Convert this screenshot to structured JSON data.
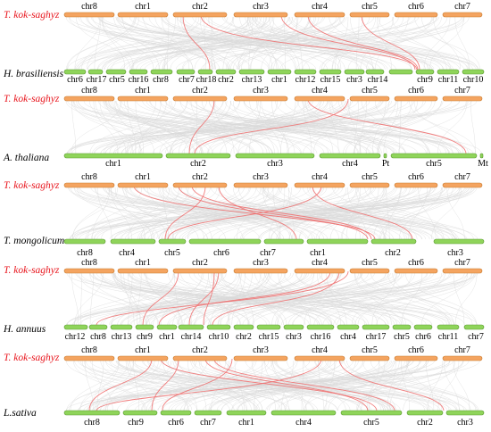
{
  "colors": {
    "top_chr": "#f4a460",
    "top_chr_stroke": "#c77a2e",
    "bottom_chr": "#8fd45a",
    "bottom_chr_stroke": "#5a9a30",
    "background_link": "#d9d9d9",
    "highlight_link": "#f07070",
    "ref_label": "#e8141c",
    "species_label": "#000000"
  },
  "panels": [
    {
      "ref_label": "T. kok-saghyz",
      "species_label": "H. brasiliensis",
      "top_chromosomes": [
        "chr8",
        "chr1",
        "chr2",
        "chr3",
        "chr4",
        "chr5",
        "chr6",
        "chr7"
      ],
      "bottom_chromosomes": [
        "chr6",
        "chr17",
        "chr5",
        "chr16",
        "chr8",
        "chr7",
        "chr18",
        "chr2",
        "chr13",
        "chr1",
        "chr12",
        "chr15",
        "chr3",
        "chr14",
        "chr9",
        "chr11",
        "chr10"
      ]
    },
    {
      "ref_label": "T. kok-saghyz",
      "species_label": "A. thaliana",
      "top_chromosomes": [
        "chr8",
        "chr1",
        "chr2",
        "chr3",
        "chr4",
        "chr5",
        "chr6",
        "chr7"
      ],
      "bottom_chromosomes": [
        "chr1",
        "chr2",
        "chr3",
        "chr4",
        "Pt",
        "chr5",
        "Mt"
      ]
    },
    {
      "ref_label": "T. kok-saghyz",
      "species_label": "T. mongolicum",
      "top_chromosomes": [
        "chr8",
        "chr1",
        "chr2",
        "chr3",
        "chr4",
        "chr5",
        "chr6",
        "chr7"
      ],
      "bottom_chromosomes": [
        "chr8",
        "chr4",
        "chr5",
        "chr6",
        "chr7",
        "chr1",
        "chr2",
        "chr3"
      ]
    },
    {
      "ref_label": "T. kok-saghyz",
      "species_label": "H. annuus",
      "top_chromosomes": [
        "chr8",
        "chr1",
        "chr2",
        "chr3",
        "chr4",
        "chr5",
        "chr6",
        "chr7"
      ],
      "bottom_chromosomes": [
        "chr12",
        "chr8",
        "chr13",
        "chr9",
        "chr1",
        "chr14",
        "chr10",
        "chr2",
        "chr15",
        "chr3",
        "chr16",
        "chr4",
        "chr17",
        "chr5",
        "chr6",
        "chr11",
        "chr7"
      ]
    },
    {
      "ref_label": "T. kok-saghyz",
      "species_label": "L.sativa",
      "top_chromosomes": [
        "chr8",
        "chr1",
        "chr2",
        "chr3",
        "chr4",
        "chr5",
        "chr6",
        "chr7"
      ],
      "bottom_chromosomes": [
        "chr8",
        "chr9",
        "chr6",
        "chr7",
        "chr1",
        "chr4",
        "chr5",
        "chr2",
        "chr3"
      ]
    }
  ]
}
